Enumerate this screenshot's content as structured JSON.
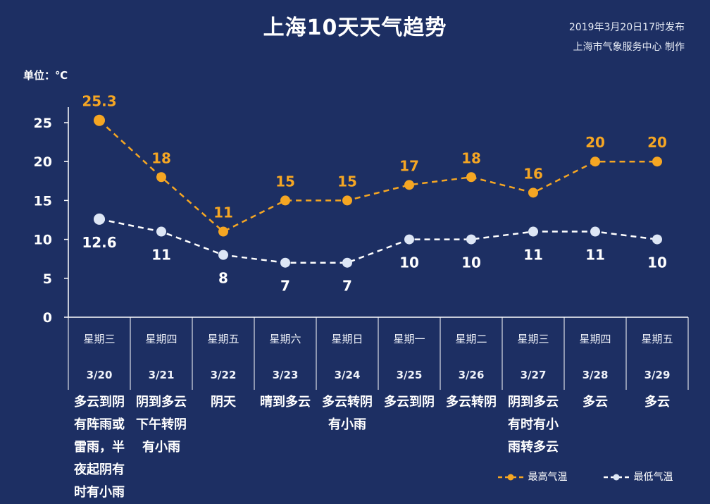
{
  "title": "上海10天天气趋势",
  "issued": "2019年3月20日17时发布",
  "producer": "上海市气象服务中心  制作",
  "unit_label": "单位：℃",
  "colors": {
    "background": "#1d2f63",
    "high": "#f5a623",
    "low": "#ffffff",
    "low_marker": "#dde6f5"
  },
  "legend": {
    "high_label": "最高气温",
    "low_label": "最低气温"
  },
  "days": [
    {
      "weekday": "星期三",
      "date": "3/20",
      "weather": [
        "多云到阴",
        "有阵雨或",
        "雷雨，半",
        "夜起阴有",
        "时有小雨"
      ]
    },
    {
      "weekday": "星期四",
      "date": "3/21",
      "weather": [
        "阴到多云",
        "下午转阴",
        "有小雨"
      ]
    },
    {
      "weekday": "星期五",
      "date": "3/22",
      "weather": [
        "阴天"
      ]
    },
    {
      "weekday": "星期六",
      "date": "3/23",
      "weather": [
        "晴到多云"
      ]
    },
    {
      "weekday": "星期日",
      "date": "3/24",
      "weather": [
        "多云转阴",
        "有小雨"
      ]
    },
    {
      "weekday": "星期一",
      "date": "3/25",
      "weather": [
        "多云到阴"
      ]
    },
    {
      "weekday": "星期二",
      "date": "3/26",
      "weather": [
        "多云转阴"
      ]
    },
    {
      "weekday": "星期三",
      "date": "3/27",
      "weather": [
        "阴到多云",
        "有时有小",
        "雨转多云"
      ]
    },
    {
      "weekday": "星期四",
      "date": "3/28",
      "weather": [
        "多云"
      ]
    },
    {
      "weekday": "星期五",
      "date": "3/29",
      "weather": [
        "多云"
      ]
    }
  ],
  "chart_data": {
    "type": "line",
    "categories": [
      "3/20",
      "3/21",
      "3/22",
      "3/23",
      "3/24",
      "3/25",
      "3/26",
      "3/27",
      "3/28",
      "3/29"
    ],
    "series": [
      {
        "name": "最高气温",
        "values": [
          25.3,
          18,
          11,
          15,
          15,
          17,
          18,
          16,
          20,
          20
        ],
        "labels": [
          "25.3",
          "18",
          "11",
          "15",
          "15",
          "17",
          "18",
          "16",
          "20",
          "20"
        ]
      },
      {
        "name": "最低气温",
        "values": [
          12.6,
          11,
          8,
          7,
          7,
          10,
          10,
          11,
          11,
          10
        ],
        "labels": [
          "12.6",
          "11",
          "8",
          "7",
          "7",
          "10",
          "10",
          "11",
          "11",
          "10"
        ]
      }
    ],
    "yticks": [
      0,
      5,
      10,
      15,
      20,
      25
    ],
    "ylim": [
      0,
      27
    ],
    "grid": false,
    "line_style": "dashed",
    "legend_position": "bottom-right"
  }
}
